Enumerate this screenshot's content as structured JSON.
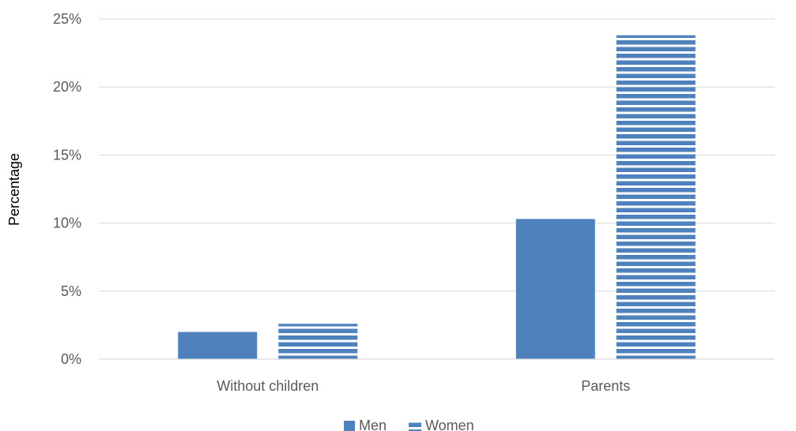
{
  "chart_data": {
    "type": "bar",
    "categories": [
      "Without children",
      "Parents"
    ],
    "series": [
      {
        "name": "Men",
        "values": [
          2.0,
          10.3
        ],
        "color": "#4F81BD",
        "pattern": "solid"
      },
      {
        "name": "Women",
        "values": [
          2.6,
          23.8
        ],
        "color": "#4F81BD",
        "pattern": "horizontal-stripes"
      }
    ],
    "ylabel": "Percentage",
    "ylim": [
      0,
      25
    ],
    "yticks": [
      0,
      5,
      10,
      15,
      20,
      25
    ],
    "ytick_labels": [
      "0%",
      "5%",
      "10%",
      "15%",
      "20%",
      "25%"
    ],
    "grid": true,
    "legend_position": "bottom"
  }
}
